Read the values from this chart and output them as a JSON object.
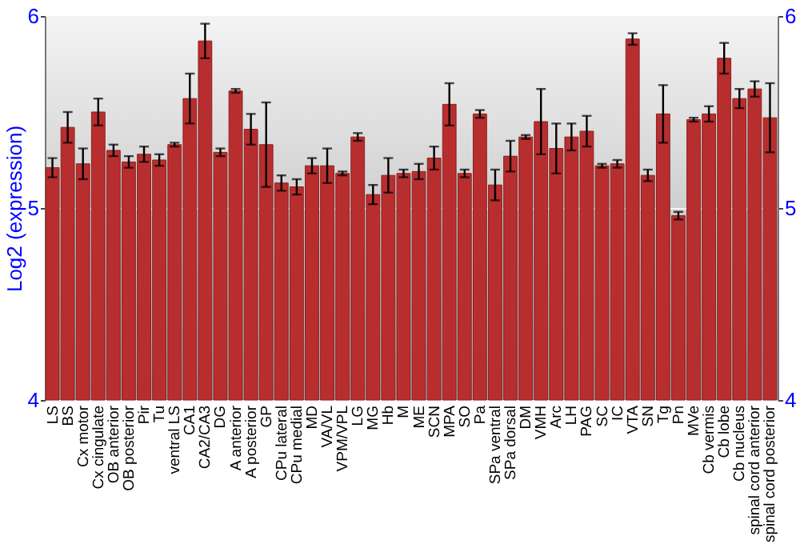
{
  "chart_data": {
    "type": "bar",
    "ylabel": "Log2 (expression)",
    "categories": [
      "LS",
      "BS",
      "Cx motor",
      "Cx cingulate",
      "OB anterior",
      "OB posterior",
      "Pir",
      "Tu",
      "ventral LS",
      "CA1",
      "CA2/CA3",
      "DG",
      "A anterior",
      "A posterior",
      "GP",
      "CPu lateral",
      "CPu medial",
      "MD",
      "VA/VL",
      "VPM/VPL",
      "LG",
      "MG",
      "Hb",
      "M",
      "ME",
      "SCN",
      "MPA",
      "SO",
      "Pa",
      "SPa ventral",
      "SPa dorsal",
      "DM",
      "VMH",
      "Arc",
      "LH",
      "PAG",
      "SC",
      "IC",
      "VTA",
      "SN",
      "Tg",
      "Pn",
      "MVe",
      "Cb vermis",
      "Cb lobe",
      "Cb nucleus",
      "spinal cord anterior",
      "spinal cord posterior"
    ],
    "series": [
      {
        "color": "#b82e2e",
        "values": [
          5.21,
          5.42,
          5.23,
          5.5,
          5.3,
          5.24,
          5.28,
          5.25,
          5.33,
          5.57,
          5.87,
          5.29,
          5.61,
          5.41,
          5.33,
          5.13,
          5.11,
          5.22,
          5.22,
          5.18,
          5.37,
          5.07,
          5.17,
          5.18,
          5.19,
          5.26,
          5.54,
          5.18,
          5.49,
          5.12,
          5.27,
          5.37,
          5.45,
          5.31,
          5.37,
          5.4,
          5.22,
          5.23,
          5.88,
          5.17,
          5.49,
          4.96,
          5.46,
          5.49,
          5.78,
          5.57,
          5.62,
          5.47
        ],
        "errors": [
          0.05,
          0.08,
          0.08,
          0.07,
          0.03,
          0.03,
          0.04,
          0.03,
          0.01,
          0.13,
          0.09,
          0.02,
          0.01,
          0.08,
          0.22,
          0.04,
          0.04,
          0.04,
          0.09,
          0.01,
          0.02,
          0.05,
          0.09,
          0.02,
          0.04,
          0.06,
          0.11,
          0.02,
          0.02,
          0.08,
          0.08,
          0.01,
          0.17,
          0.13,
          0.07,
          0.08,
          0.01,
          0.02,
          0.03,
          0.03,
          0.15,
          0.02,
          0.01,
          0.04,
          0.08,
          0.05,
          0.04,
          0.18
        ]
      }
    ],
    "ylim": [
      4,
      6
    ],
    "yticks": [
      4,
      5,
      6
    ],
    "y2lim": [
      4,
      6
    ],
    "y2ticks": [
      4,
      5,
      6
    ],
    "grid": "y"
  }
}
